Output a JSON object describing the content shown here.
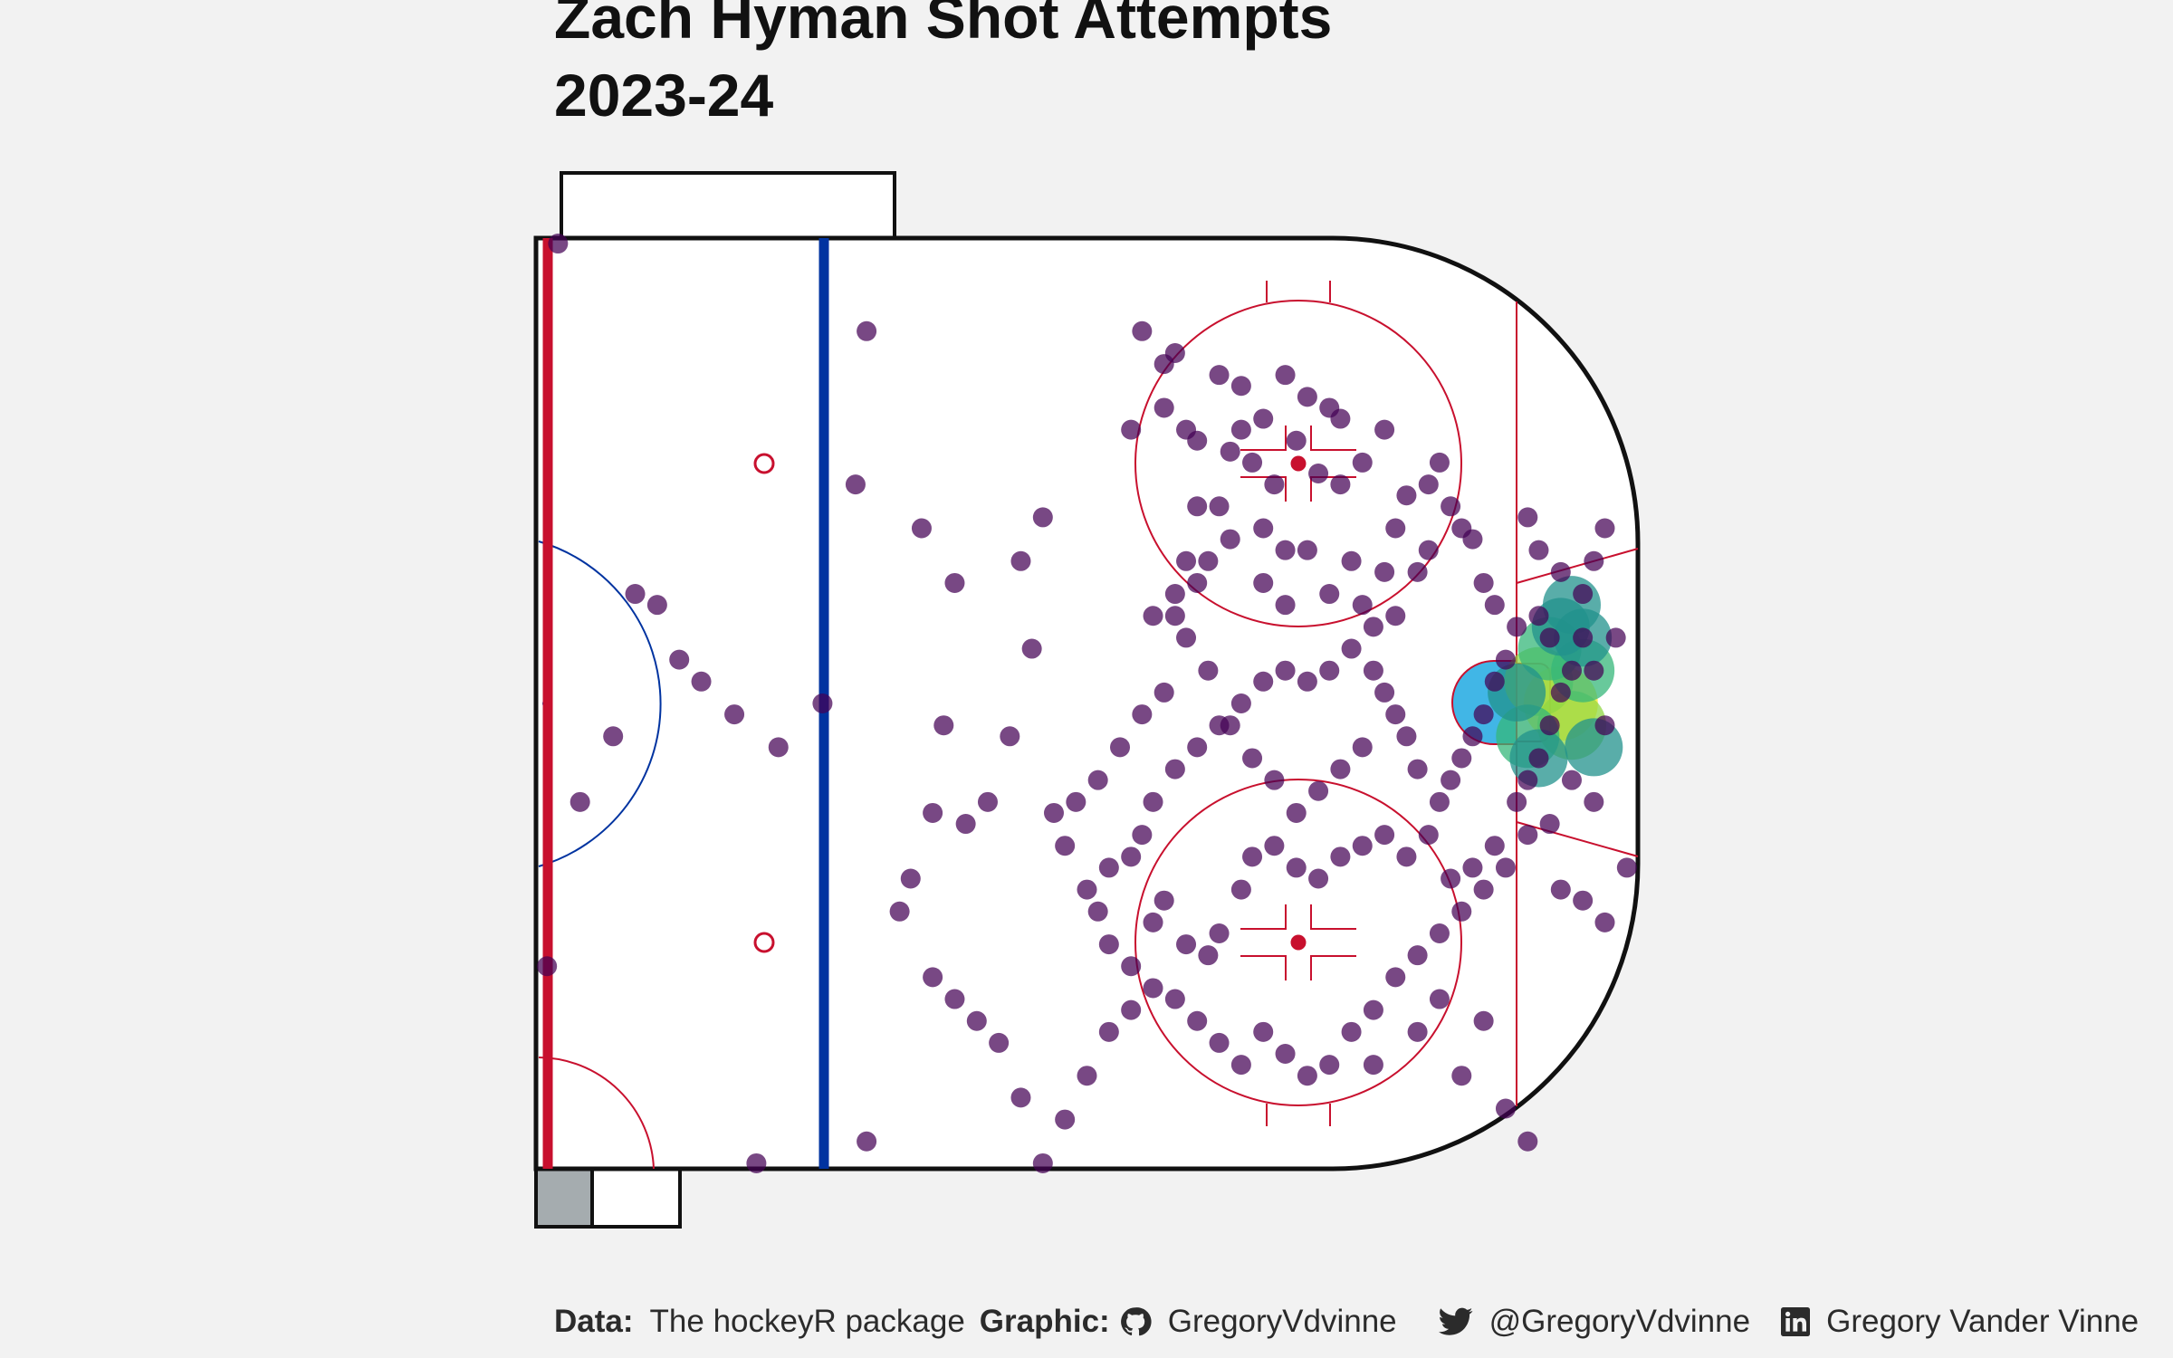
{
  "chart": {
    "title_line1": "Zach Hyman Shot Attempts",
    "title_line2": "2023-24"
  },
  "caption": {
    "data_label": "Data:",
    "data_value": "The hockeyR package",
    "graphic_label": "Graphic:",
    "github_icon": "github-icon",
    "github_handle": "GregoryVdvinne",
    "twitter_icon": "twitter-icon",
    "twitter_handle": "@GregoryVdvinne",
    "linkedin_icon": "linkedin-icon",
    "linkedin_name": "Gregory Vander Vinne"
  },
  "colors": {
    "background": "#f2f2f2",
    "center_line": "#c8102e",
    "blue_line": "#0033a0",
    "goal_crease": "#41b6e6",
    "shot_point": "#440154",
    "density_scale": [
      "#440154",
      "#31688e",
      "#21918c",
      "#35b779",
      "#90d743",
      "#fde725"
    ]
  },
  "chart_data": {
    "type": "scatter",
    "x_range": [
      0,
      100
    ],
    "y_range": [
      -42.5,
      42.5
    ],
    "points": [
      {
        "x": 2,
        "y": 42
      },
      {
        "x": 30,
        "y": 34
      },
      {
        "x": 29,
        "y": 20
      },
      {
        "x": 35,
        "y": 16
      },
      {
        "x": 38,
        "y": 11
      },
      {
        "x": 46,
        "y": 17
      },
      {
        "x": 55,
        "y": 34
      },
      {
        "x": 54,
        "y": 25
      },
      {
        "x": 57,
        "y": 31
      },
      {
        "x": 58,
        "y": 32
      },
      {
        "x": 62,
        "y": 30
      },
      {
        "x": 64,
        "y": 29
      },
      {
        "x": 68,
        "y": 30
      },
      {
        "x": 70,
        "y": 28
      },
      {
        "x": 72,
        "y": 27
      },
      {
        "x": 57,
        "y": 27
      },
      {
        "x": 59,
        "y": 25
      },
      {
        "x": 60,
        "y": 24
      },
      {
        "x": 63,
        "y": 23
      },
      {
        "x": 65,
        "y": 22
      },
      {
        "x": 69,
        "y": 24
      },
      {
        "x": 73,
        "y": 26
      },
      {
        "x": 75,
        "y": 22
      },
      {
        "x": 77,
        "y": 25
      },
      {
        "x": 67,
        "y": 20
      },
      {
        "x": 71,
        "y": 21
      },
      {
        "x": 73,
        "y": 20
      },
      {
        "x": 66,
        "y": 16
      },
      {
        "x": 68,
        "y": 14
      },
      {
        "x": 62,
        "y": 18
      },
      {
        "x": 61,
        "y": 13
      },
      {
        "x": 60,
        "y": 11
      },
      {
        "x": 58,
        "y": 8
      },
      {
        "x": 59,
        "y": 13
      },
      {
        "x": 63,
        "y": 15
      },
      {
        "x": 66,
        "y": 11
      },
      {
        "x": 68,
        "y": 9
      },
      {
        "x": 70,
        "y": 14
      },
      {
        "x": 74,
        "y": 13
      },
      {
        "x": 72,
        "y": 10
      },
      {
        "x": 75,
        "y": 9
      },
      {
        "x": 77,
        "y": 12
      },
      {
        "x": 78,
        "y": 16
      },
      {
        "x": 79,
        "y": 19
      },
      {
        "x": 81,
        "y": 20
      },
      {
        "x": 82,
        "y": 22
      },
      {
        "x": 83,
        "y": 18
      },
      {
        "x": 84,
        "y": 16
      },
      {
        "x": 85,
        "y": 15
      },
      {
        "x": 86,
        "y": 11
      },
      {
        "x": 87,
        "y": 9
      },
      {
        "x": 81,
        "y": 14
      },
      {
        "x": 80,
        "y": 12
      },
      {
        "x": 78,
        "y": 8
      },
      {
        "x": 76,
        "y": 7
      },
      {
        "x": 74,
        "y": 5
      },
      {
        "x": 72,
        "y": 3
      },
      {
        "x": 70,
        "y": 2
      },
      {
        "x": 68,
        "y": 3
      },
      {
        "x": 66,
        "y": 2
      },
      {
        "x": 64,
        "y": 0
      },
      {
        "x": 62,
        "y": -2
      },
      {
        "x": 60,
        "y": -4
      },
      {
        "x": 58,
        "y": -6
      },
      {
        "x": 56,
        "y": -9
      },
      {
        "x": 55,
        "y": -12
      },
      {
        "x": 54,
        "y": -14
      },
      {
        "x": 52,
        "y": -15
      },
      {
        "x": 50,
        "y": -17
      },
      {
        "x": 48,
        "y": -13
      },
      {
        "x": 47,
        "y": -10
      },
      {
        "x": 43,
        "y": -3
      },
      {
        "x": 41,
        "y": -9
      },
      {
        "x": 39,
        "y": -11
      },
      {
        "x": 36,
        "y": -10
      },
      {
        "x": 34,
        "y": -16
      },
      {
        "x": 33,
        "y": -19
      },
      {
        "x": 51,
        "y": -19
      },
      {
        "x": 52,
        "y": -22
      },
      {
        "x": 54,
        "y": -24
      },
      {
        "x": 56,
        "y": -20
      },
      {
        "x": 57,
        "y": -18
      },
      {
        "x": 59,
        "y": -22
      },
      {
        "x": 61,
        "y": -23
      },
      {
        "x": 62,
        "y": -21
      },
      {
        "x": 64,
        "y": -17
      },
      {
        "x": 65,
        "y": -14
      },
      {
        "x": 67,
        "y": -13
      },
      {
        "x": 69,
        "y": -15
      },
      {
        "x": 71,
        "y": -16
      },
      {
        "x": 73,
        "y": -14
      },
      {
        "x": 75,
        "y": -13
      },
      {
        "x": 77,
        "y": -12
      },
      {
        "x": 79,
        "y": -14
      },
      {
        "x": 81,
        "y": -12
      },
      {
        "x": 83,
        "y": -16
      },
      {
        "x": 85,
        "y": -15
      },
      {
        "x": 87,
        "y": -13
      },
      {
        "x": 89,
        "y": -9
      },
      {
        "x": 90,
        "y": -7
      },
      {
        "x": 91,
        "y": -5
      },
      {
        "x": 92,
        "y": -2
      },
      {
        "x": 93,
        "y": 1
      },
      {
        "x": 94,
        "y": 3
      },
      {
        "x": 92,
        "y": 6
      },
      {
        "x": 91,
        "y": 8
      },
      {
        "x": 89,
        "y": 7
      },
      {
        "x": 88,
        "y": 4
      },
      {
        "x": 87,
        "y": 2
      },
      {
        "x": 86,
        "y": -1
      },
      {
        "x": 85,
        "y": -3
      },
      {
        "x": 84,
        "y": -5
      },
      {
        "x": 83,
        "y": -7
      },
      {
        "x": 82,
        "y": -9
      },
      {
        "x": 80,
        "y": -6
      },
      {
        "x": 79,
        "y": -3
      },
      {
        "x": 78,
        "y": -1
      },
      {
        "x": 77,
        "y": 1
      },
      {
        "x": 76,
        "y": 3
      },
      {
        "x": 75,
        "y": -4
      },
      {
        "x": 73,
        "y": -6
      },
      {
        "x": 71,
        "y": -8
      },
      {
        "x": 69,
        "y": -10
      },
      {
        "x": 67,
        "y": -7
      },
      {
        "x": 65,
        "y": -5
      },
      {
        "x": 63,
        "y": -2
      },
      {
        "x": 61,
        "y": 3
      },
      {
        "x": 59,
        "y": 6
      },
      {
        "x": 57,
        "y": 1
      },
      {
        "x": 55,
        "y": -1
      },
      {
        "x": 53,
        "y": -4
      },
      {
        "x": 51,
        "y": -7
      },
      {
        "x": 49,
        "y": -9
      },
      {
        "x": 95,
        "y": 6
      },
      {
        "x": 96,
        "y": 3
      },
      {
        "x": 97,
        "y": -2
      },
      {
        "x": 98,
        "y": 6
      },
      {
        "x": 99,
        "y": -15
      },
      {
        "x": 96,
        "y": -9
      },
      {
        "x": 94,
        "y": -7
      },
      {
        "x": 92,
        "y": -11
      },
      {
        "x": 90,
        "y": -12
      },
      {
        "x": 88,
        "y": -15
      },
      {
        "x": 86,
        "y": -17
      },
      {
        "x": 84,
        "y": -19
      },
      {
        "x": 82,
        "y": -21
      },
      {
        "x": 80,
        "y": -23
      },
      {
        "x": 78,
        "y": -25
      },
      {
        "x": 76,
        "y": -28
      },
      {
        "x": 74,
        "y": -30
      },
      {
        "x": 72,
        "y": -33
      },
      {
        "x": 70,
        "y": -34
      },
      {
        "x": 68,
        "y": -32
      },
      {
        "x": 66,
        "y": -30
      },
      {
        "x": 64,
        "y": -33
      },
      {
        "x": 62,
        "y": -31
      },
      {
        "x": 60,
        "y": -29
      },
      {
        "x": 58,
        "y": -27
      },
      {
        "x": 56,
        "y": -26
      },
      {
        "x": 54,
        "y": -28
      },
      {
        "x": 52,
        "y": -30
      },
      {
        "x": 50,
        "y": -34
      },
      {
        "x": 48,
        "y": -38
      },
      {
        "x": 46,
        "y": -42
      },
      {
        "x": 44,
        "y": -36
      },
      {
        "x": 42,
        "y": -31
      },
      {
        "x": 40,
        "y": -29
      },
      {
        "x": 38,
        "y": -27
      },
      {
        "x": 36,
        "y": -25
      },
      {
        "x": 30,
        "y": -40
      },
      {
        "x": 20,
        "y": -42
      },
      {
        "x": 7,
        "y": -3
      },
      {
        "x": 4,
        "y": -9
      },
      {
        "x": 1,
        "y": -24
      },
      {
        "x": 9,
        "y": 10
      },
      {
        "x": 11,
        "y": 9
      },
      {
        "x": 13,
        "y": 4
      },
      {
        "x": 15,
        "y": 2
      },
      {
        "x": 18,
        "y": -1
      },
      {
        "x": 22,
        "y": -4
      },
      {
        "x": 26,
        "y": 0
      },
      {
        "x": 37,
        "y": -2
      },
      {
        "x": 45,
        "y": 5
      },
      {
        "x": 44,
        "y": 13
      },
      {
        "x": 56,
        "y": 8
      },
      {
        "x": 58,
        "y": 10
      },
      {
        "x": 60,
        "y": 18
      },
      {
        "x": 64,
        "y": 25
      },
      {
        "x": 66,
        "y": 26
      },
      {
        "x": 90,
        "y": 17
      },
      {
        "x": 91,
        "y": 14
      },
      {
        "x": 93,
        "y": 12
      },
      {
        "x": 95,
        "y": 10
      },
      {
        "x": 96,
        "y": 13
      },
      {
        "x": 97,
        "y": 16
      },
      {
        "x": 93,
        "y": -17
      },
      {
        "x": 95,
        "y": -18
      },
      {
        "x": 97,
        "y": -20
      },
      {
        "x": 80,
        "y": -30
      },
      {
        "x": 76,
        "y": -33
      },
      {
        "x": 84,
        "y": -34
      },
      {
        "x": 88,
        "y": -37
      },
      {
        "x": 90,
        "y": -40
      },
      {
        "x": 86,
        "y": -29
      },
      {
        "x": 82,
        "y": -27
      }
    ],
    "hotspots": [
      {
        "x": 93,
        "y": 0,
        "level": 5
      },
      {
        "x": 91,
        "y": 2,
        "level": 4
      },
      {
        "x": 94,
        "y": -2,
        "level": 4
      },
      {
        "x": 92,
        "y": 5,
        "level": 3
      },
      {
        "x": 95,
        "y": 3,
        "level": 3
      },
      {
        "x": 90,
        "y": -3,
        "level": 3
      },
      {
        "x": 93,
        "y": 7,
        "level": 2
      },
      {
        "x": 89,
        "y": 1,
        "level": 2
      },
      {
        "x": 96,
        "y": -4,
        "level": 2
      },
      {
        "x": 94,
        "y": 9,
        "level": 2
      },
      {
        "x": 91,
        "y": -5,
        "level": 2
      },
      {
        "x": 95,
        "y": 6,
        "level": 2
      }
    ]
  }
}
